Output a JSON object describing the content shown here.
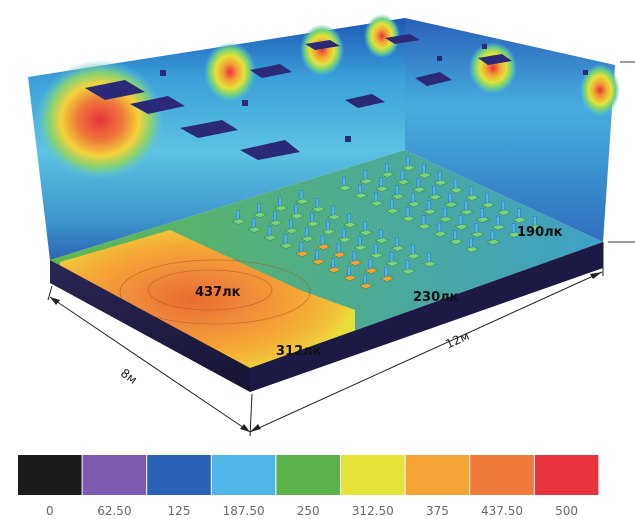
{
  "labels": {
    "lux_437": "437лк",
    "lux_312": "312лк",
    "lux_230": "230лк",
    "lux_190": "190лк",
    "width_dim": "8м",
    "length_dim": "12м"
  },
  "legend": {
    "ticks": [
      "0",
      "62.50",
      "125",
      "187.50",
      "250",
      "312.50",
      "375",
      "437.50",
      "500"
    ],
    "colors": [
      "#1b1b1b",
      "#7c5bb0",
      "#2a63b5",
      "#4fb7e8",
      "#5cb24a",
      "#e3e33a",
      "#f4a434",
      "#ef7a3b",
      "#e8333c"
    ]
  }
}
